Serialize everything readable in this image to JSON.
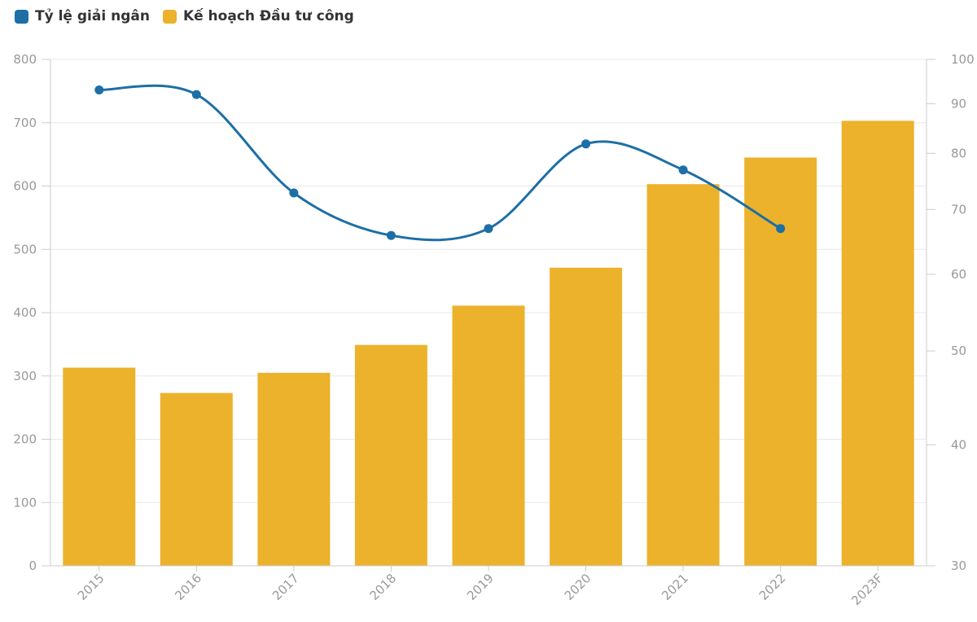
{
  "chart_data": {
    "type": "combo",
    "title": "",
    "categories": [
      "2015",
      "2016",
      "2017",
      "2018",
      "2019",
      "2020",
      "2021",
      "2022",
      "2023F"
    ],
    "series": [
      {
        "name": "Tỷ lệ giải ngân",
        "type": "spline",
        "axis": "right",
        "color": "#1d6fa5",
        "values": [
          93,
          92,
          72.8,
          65.8,
          66.9,
          81.8,
          76.9,
          66.9,
          null
        ]
      },
      {
        "name": "Kế hoạch Đầu tư công",
        "type": "bar",
        "axis": "left",
        "color": "#ecb22c",
        "values": [
          313,
          273,
          305,
          349,
          411,
          471,
          603,
          645,
          703
        ]
      }
    ],
    "left_axis": {
      "scale": "linear",
      "min": 0,
      "max": 800,
      "tick_labels": [
        "0",
        "100",
        "200",
        "300",
        "400",
        "500",
        "600",
        "700",
        "800"
      ]
    },
    "right_axis": {
      "scale": "log",
      "min": 30,
      "max": 100,
      "tick_labels": [
        "30",
        "40",
        "50",
        "60",
        "70",
        "80",
        "90",
        "100"
      ]
    },
    "grid": "horizontal",
    "legend_position": "top-left",
    "colors": {
      "grid": "#e8e8e8",
      "axis_line": "#cccccc",
      "tick": "#cccccc",
      "axis_label": "#999999",
      "legend_text": "#333333"
    }
  }
}
